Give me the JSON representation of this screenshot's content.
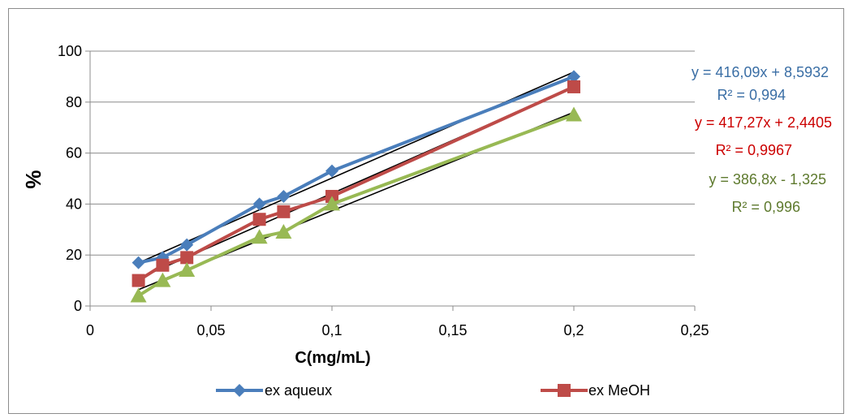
{
  "chart_data": {
    "type": "line",
    "title": "",
    "xlabel": "C(mg/mL)",
    "ylabel": "%",
    "xlim": [
      0,
      0.25
    ],
    "ylim": [
      0,
      100
    ],
    "x_ticks": [
      "0",
      "0,05",
      "0,1",
      "0,15",
      "0,2",
      "0,25"
    ],
    "y_ticks": [
      "0",
      "20",
      "40",
      "60",
      "80",
      "100"
    ],
    "x_tick_values": [
      0,
      0.05,
      0.1,
      0.15,
      0.2,
      0.25
    ],
    "y_tick_values": [
      0,
      20,
      40,
      60,
      80,
      100
    ],
    "grid": "horizontal",
    "legend_position": "bottom",
    "series": [
      {
        "name": "ex aqueux",
        "color": "#4a7ebb",
        "marker": "diamond",
        "x": [
          0.02,
          0.03,
          0.04,
          0.07,
          0.08,
          0.1,
          0.2
        ],
        "y": [
          17,
          19,
          24,
          40,
          43,
          53,
          90
        ],
        "trendline": {
          "slope": 416.09,
          "intercept": 8.5932
        },
        "trend_label_color": "#3a6ea5"
      },
      {
        "name": "ex MeOH",
        "color": "#be4b48",
        "marker": "square",
        "x": [
          0.02,
          0.03,
          0.04,
          0.07,
          0.08,
          0.1,
          0.2
        ],
        "y": [
          10,
          16,
          19,
          34,
          37,
          43,
          86
        ],
        "trendline": {
          "slope": 417.27,
          "intercept": 2.4405
        },
        "trend_label_color": "#cc0000"
      },
      {
        "name": "",
        "color": "#98b954",
        "marker": "triangle",
        "x": [
          0.02,
          0.03,
          0.04,
          0.07,
          0.08,
          0.1,
          0.2
        ],
        "y": [
          4,
          10,
          14,
          27,
          29,
          40,
          75
        ],
        "trendline": {
          "slope": 386.8,
          "intercept": -1.325
        },
        "trend_label_color": "#5e7a2e"
      }
    ],
    "trend_labels": [
      {
        "equation": "y = 416,09x + 8,5932",
        "r2": "R² = 0,994"
      },
      {
        "equation": "y = 417,27x + 2,4405",
        "r2": "R² = 0,9967"
      },
      {
        "equation": "y = 386,8x - 1,325",
        "r2": "R² = 0,996"
      }
    ]
  }
}
